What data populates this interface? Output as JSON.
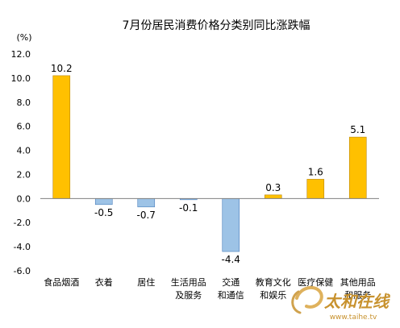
{
  "chart_data": {
    "type": "bar",
    "title": "7月份居民消费价格分类别同比涨跌幅",
    "unit_label": "(%)",
    "categories": [
      [
        "食品烟酒"
      ],
      [
        "衣着"
      ],
      [
        "居住"
      ],
      [
        "生活用品",
        "及服务"
      ],
      [
        "交通",
        "和通信"
      ],
      [
        "教育文化",
        "和娱乐"
      ],
      [
        "医疗保健"
      ],
      [
        "其他用品",
        "和服务"
      ]
    ],
    "values": [
      10.2,
      -0.5,
      -0.7,
      -0.1,
      -4.4,
      0.3,
      1.6,
      5.1
    ],
    "value_labels": [
      "10.2",
      "-0.5",
      "-0.7",
      "-0.1",
      "-4.4",
      "0.3",
      "1.6",
      "5.1"
    ],
    "ylim": [
      -6.0,
      12.0
    ],
    "yticks": [
      12.0,
      10.0,
      8.0,
      6.0,
      4.0,
      2.0,
      0.0,
      -2.0,
      -4.0,
      -6.0
    ],
    "ytick_labels": [
      "12.0",
      "10.0",
      "8.0",
      "6.0",
      "4.0",
      "2.0",
      "0.0",
      "-2.0",
      "-4.0",
      "-6.0"
    ],
    "grid": false,
    "colors": {
      "positive": "#FFC000",
      "positive_edge": "#B8860B",
      "negative": "#9DC3E6",
      "negative_edge": "#4A7EBB",
      "axis": "#808080",
      "text": "#000000"
    }
  },
  "watermark": {
    "brand": "太和在线",
    "url": "www.taihe.tv",
    "colors": {
      "main": "#C8922E",
      "swirl": "#D9A441"
    }
  }
}
